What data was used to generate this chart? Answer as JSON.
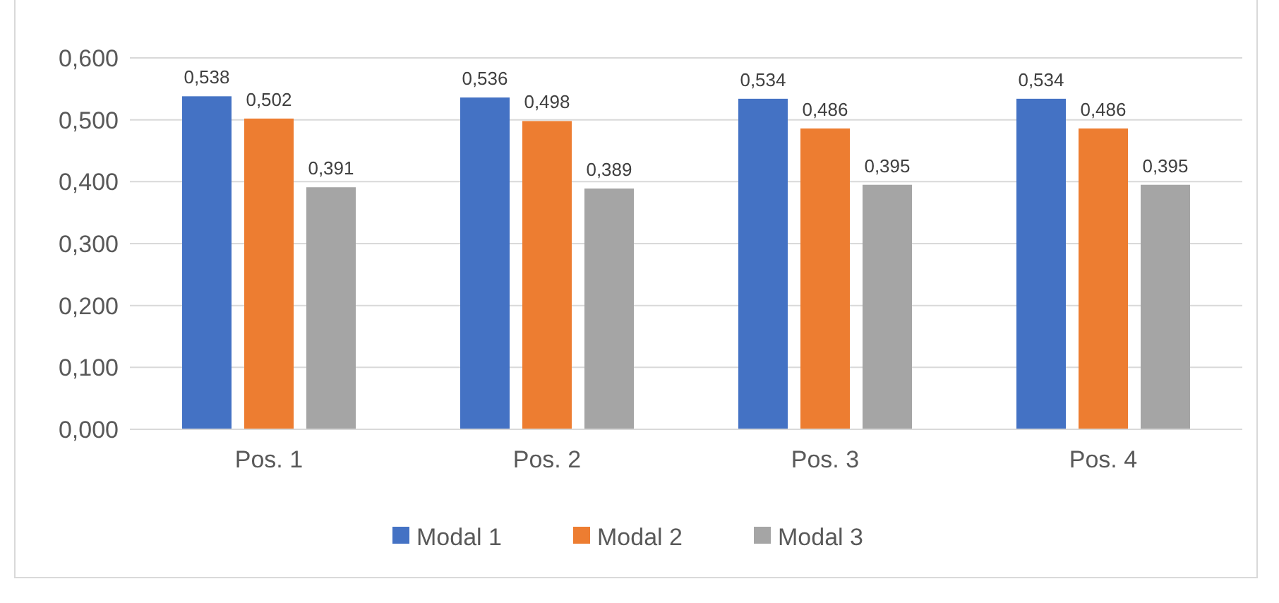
{
  "chart_data": {
    "type": "bar",
    "categories": [
      "Pos. 1",
      "Pos. 2",
      "Pos. 3",
      "Pos. 4"
    ],
    "series": [
      {
        "name": "Modal 1",
        "color": "#4472c4",
        "values": [
          0.538,
          0.536,
          0.534,
          0.534
        ],
        "value_labels": [
          "0,538",
          "0,536",
          "0,534",
          "0,534"
        ]
      },
      {
        "name": "Modal 2",
        "color": "#ed7d31",
        "values": [
          0.502,
          0.498,
          0.486,
          0.486
        ],
        "value_labels": [
          "0,502",
          "0,498",
          "0,486",
          "0,486"
        ]
      },
      {
        "name": "Modal 3",
        "color": "#a5a5a5",
        "values": [
          0.391,
          0.389,
          0.395,
          0.395
        ],
        "value_labels": [
          "0,391",
          "0,389",
          "0,395",
          "0,395"
        ]
      }
    ],
    "ylim": [
      0,
      0.6
    ],
    "yticks": [
      {
        "value": 0,
        "label": "0,000"
      },
      {
        "value": 0.1,
        "label": "0,100"
      },
      {
        "value": 0.2,
        "label": "0,200"
      },
      {
        "value": 0.3,
        "label": "0,300"
      },
      {
        "value": 0.4,
        "label": "0,400"
      },
      {
        "value": 0.5,
        "label": "0,500"
      },
      {
        "value": 0.6,
        "label": "0,600"
      }
    ],
    "grid": "y",
    "legend": "bottom"
  }
}
